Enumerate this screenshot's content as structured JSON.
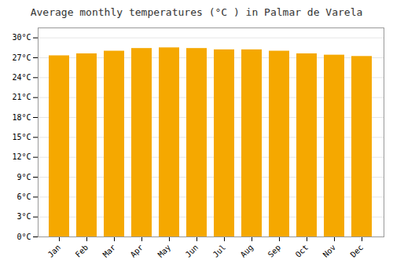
{
  "chart_data": {
    "type": "bar",
    "title": "Average monthly temperatures (°C ) in Palmar de Varela",
    "categories": [
      "Jan",
      "Feb",
      "Mar",
      "Apr",
      "May",
      "Jun",
      "Jul",
      "Aug",
      "Sep",
      "Oct",
      "Nov",
      "Dec"
    ],
    "values": [
      27.3,
      27.6,
      28.0,
      28.4,
      28.5,
      28.4,
      28.2,
      28.2,
      28.0,
      27.6,
      27.4,
      27.2
    ],
    "color": "#F5A800",
    "ylim": [
      0,
      31.5
    ],
    "yticks": [
      {
        "value": 0,
        "label": "0°C"
      },
      {
        "value": 3,
        "label": "3°C"
      },
      {
        "value": 6,
        "label": "6°C"
      },
      {
        "value": 9,
        "label": "9°C"
      },
      {
        "value": 12,
        "label": "12°C"
      },
      {
        "value": 15,
        "label": "15°C"
      },
      {
        "value": 18,
        "label": "18°C"
      },
      {
        "value": 21,
        "label": "21°C"
      },
      {
        "value": 24,
        "label": "24°C"
      },
      {
        "value": 27,
        "label": "27°C"
      },
      {
        "value": 30,
        "label": "30°C"
      }
    ],
    "grid": true
  }
}
